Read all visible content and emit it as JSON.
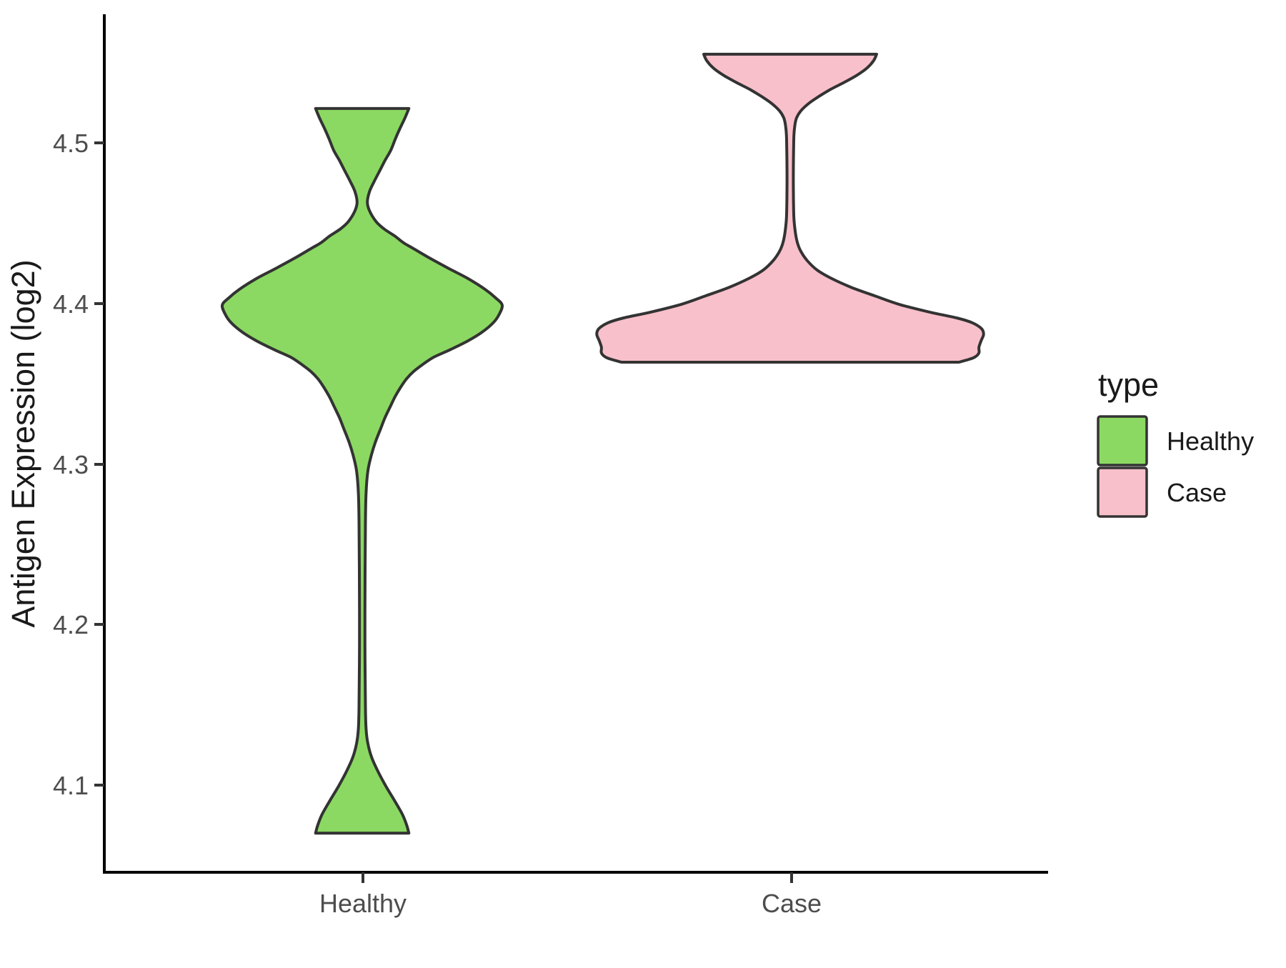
{
  "chart_data": {
    "type": "violin",
    "title": "",
    "xlabel": "",
    "ylabel": "Antigen Expression (log2)",
    "categories": [
      "Healthy",
      "Case"
    ],
    "y_ticks": [
      4.5,
      4.4,
      4.3,
      4.2,
      4.1
    ],
    "y_tick_labels": [
      "4.5",
      "4.4",
      "4.3",
      "4.2",
      "4.1"
    ],
    "ylim": [
      4.05,
      4.58
    ],
    "grid": false,
    "stroke_color": "#333333",
    "legend": {
      "title": "type",
      "position": "right",
      "entries": [
        {
          "label": "Healthy",
          "fill": "#8BD962"
        },
        {
          "label": "Case",
          "fill": "#F8C0CB"
        }
      ]
    },
    "series": [
      {
        "name": "Healthy",
        "fill": "#8BD962",
        "x": 1,
        "y_range": [
          4.07,
          4.521
        ],
        "peak_value": 4.4,
        "profile": [
          [
            4.5214,
            0.109
          ],
          [
            4.5156,
            0.1
          ],
          [
            4.5089,
            0.088
          ],
          [
            4.5022,
            0.077
          ],
          [
            4.4955,
            0.067
          ],
          [
            4.4889,
            0.053
          ],
          [
            4.4822,
            0.04
          ],
          [
            4.4755,
            0.027
          ],
          [
            4.4697,
            0.017
          ],
          [
            4.4631,
            0.012
          ],
          [
            4.4577,
            0.017
          ],
          [
            4.4511,
            0.032
          ],
          [
            4.4466,
            0.05
          ],
          [
            4.4422,
            0.075
          ],
          [
            4.4377,
            0.097
          ],
          [
            4.4346,
            0.117
          ],
          [
            4.4288,
            0.154
          ],
          [
            4.4221,
            0.2
          ],
          [
            4.4155,
            0.247
          ],
          [
            4.4088,
            0.287
          ],
          [
            4.4034,
            0.312
          ],
          [
            4.399,
            0.327
          ],
          [
            4.3932,
            0.32
          ],
          [
            4.3879,
            0.306
          ],
          [
            4.3821,
            0.28
          ],
          [
            4.3767,
            0.247
          ],
          [
            4.371,
            0.204
          ],
          [
            4.3665,
            0.167
          ],
          [
            4.3621,
            0.142
          ],
          [
            4.3576,
            0.12
          ],
          [
            4.3532,
            0.104
          ],
          [
            4.3487,
            0.092
          ],
          [
            4.342,
            0.077
          ],
          [
            4.3354,
            0.065
          ],
          [
            4.3287,
            0.053
          ],
          [
            4.322,
            0.043
          ],
          [
            4.3131,
            0.03
          ],
          [
            4.3042,
            0.02
          ],
          [
            4.2953,
            0.013
          ],
          [
            4.282,
            0.009
          ],
          [
            4.2642,
            0.0075
          ],
          [
            4.233,
            0.0067
          ],
          [
            4.1885,
            0.0063
          ],
          [
            4.1485,
            0.0075
          ],
          [
            4.1351,
            0.009
          ],
          [
            4.1262,
            0.013
          ],
          [
            4.1173,
            0.022
          ],
          [
            4.1084,
            0.037
          ],
          [
            4.0995,
            0.055
          ],
          [
            4.0906,
            0.075
          ],
          [
            4.0817,
            0.094
          ],
          [
            4.075,
            0.104
          ],
          [
            4.0701,
            0.109
          ]
        ]
      },
      {
        "name": "Case",
        "fill": "#F8C0CB",
        "x": 2,
        "y_range": [
          4.363,
          4.555
        ],
        "peak_value": 4.38,
        "profile": [
          [
            4.5552,
            0.202
          ],
          [
            4.5512,
            0.195
          ],
          [
            4.5467,
            0.18
          ],
          [
            4.5423,
            0.157
          ],
          [
            4.5378,
            0.127
          ],
          [
            4.5334,
            0.095
          ],
          [
            4.5289,
            0.067
          ],
          [
            4.5245,
            0.043
          ],
          [
            4.52,
            0.025
          ],
          [
            4.5156,
            0.015
          ],
          [
            4.5111,
            0.011
          ],
          [
            4.5045,
            0.0087
          ],
          [
            4.4911,
            0.0077
          ],
          [
            4.4778,
            0.0073
          ],
          [
            4.4644,
            0.0077
          ],
          [
            4.4533,
            0.0087
          ],
          [
            4.4444,
            0.012
          ],
          [
            4.4377,
            0.017
          ],
          [
            4.4324,
            0.025
          ],
          [
            4.4266,
            0.04
          ],
          [
            4.4208,
            0.063
          ],
          [
            4.4155,
            0.097
          ],
          [
            4.4101,
            0.142
          ],
          [
            4.4048,
            0.197
          ],
          [
            4.3995,
            0.254
          ],
          [
            4.3946,
            0.326
          ],
          [
            4.391,
            0.389
          ],
          [
            4.3879,
            0.426
          ],
          [
            4.3843,
            0.447
          ],
          [
            4.3808,
            0.452
          ],
          [
            4.3767,
            0.446
          ],
          [
            4.3727,
            0.441
          ],
          [
            4.3692,
            0.441
          ],
          [
            4.3665,
            0.431
          ],
          [
            4.3647,
            0.412
          ],
          [
            4.3634,
            0.394
          ]
        ]
      }
    ]
  }
}
